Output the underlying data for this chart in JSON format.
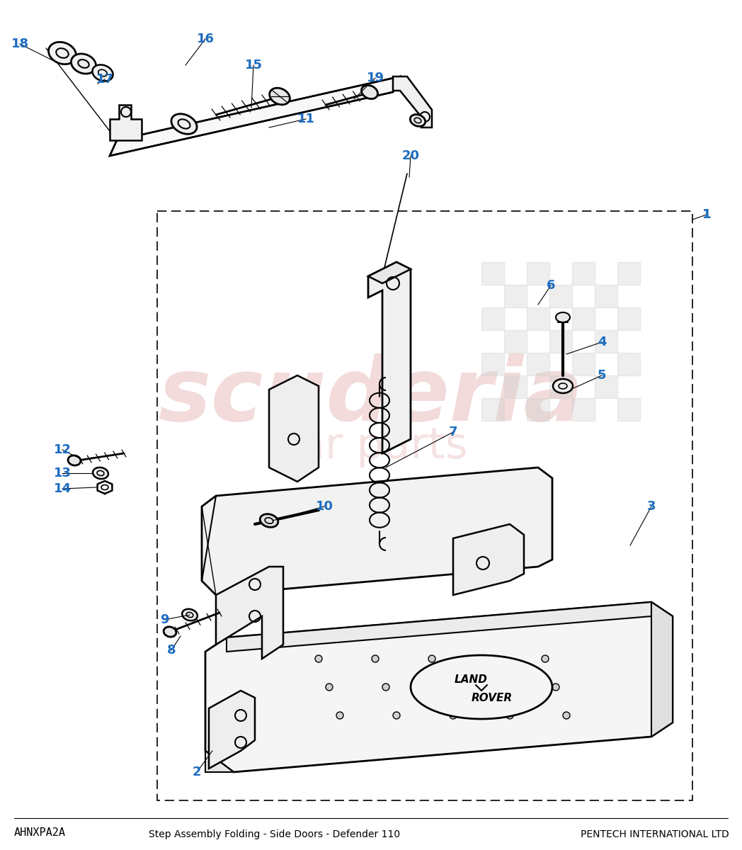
{
  "title": "Step Assembly Folding - Side Doors - Defender 110",
  "part_code": "AHNXPA2A",
  "company": "PENTECH INTERNATIONAL LTD",
  "bg": "#ffffff",
  "lc": "#000000",
  "blue": "#1c6dc0",
  "wm_color": "#e8b8b8",
  "wm_color2": "#d0d0d0",
  "fig_w": 10.48,
  "fig_h": 12.0,
  "dpi": 100
}
